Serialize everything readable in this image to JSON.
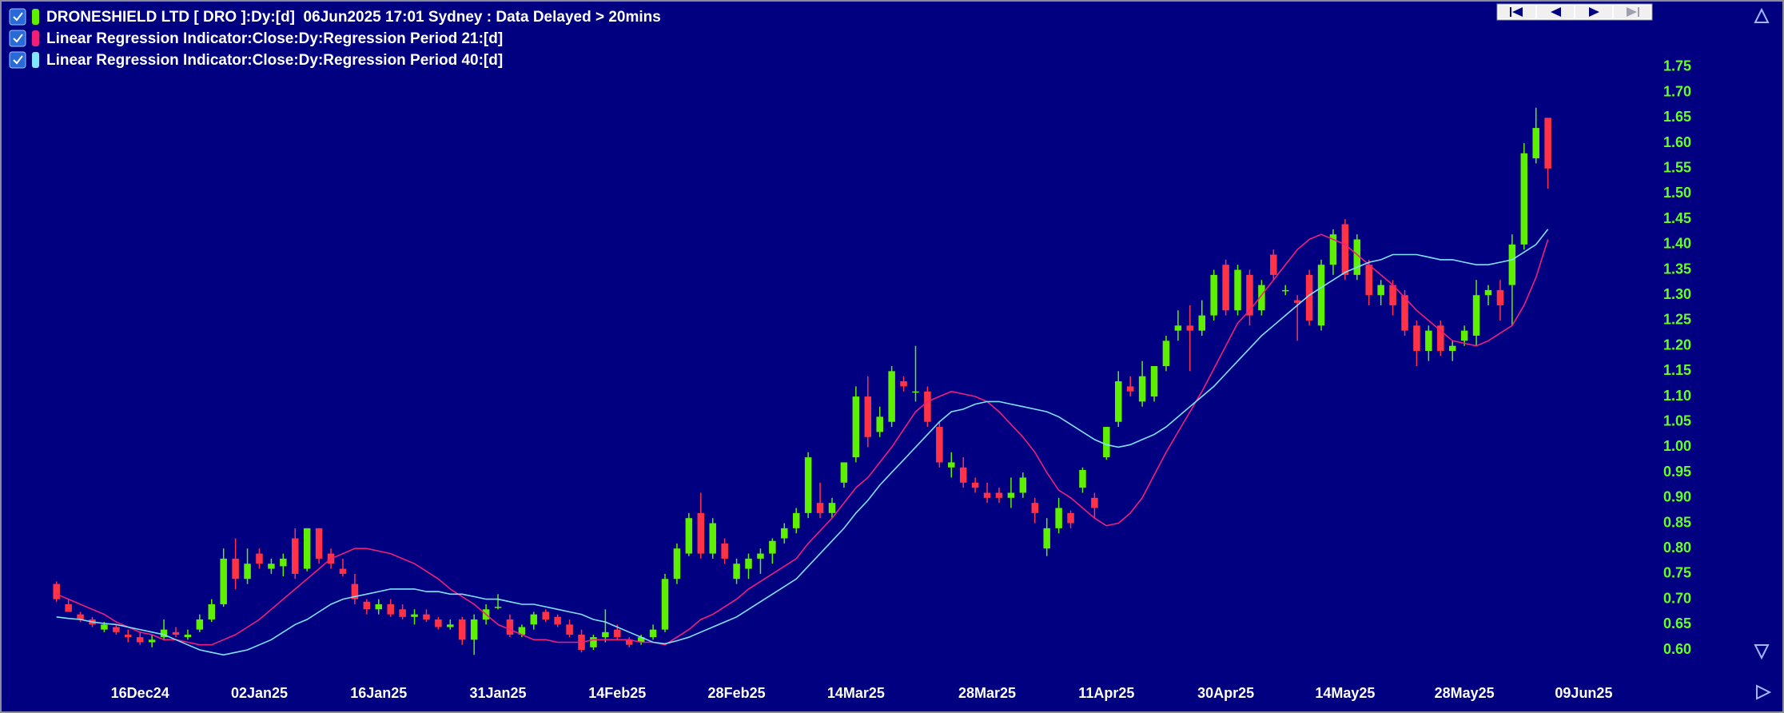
{
  "chart_data": {
    "type": "candlestick",
    "candles": {
      "name": "DRONESHIELD LTD [ DRO ]:Dy:[d]  06Jun2025 17:01 Sydney : Data Delayed > 20mins",
      "up_color": "#5ef000",
      "down_color": "#ff3345",
      "ohlc": [
        [
          0.73,
          0.735,
          0.695,
          0.7
        ],
        [
          0.69,
          0.7,
          0.675,
          0.675
        ],
        [
          0.67,
          0.675,
          0.655,
          0.66
        ],
        [
          0.66,
          0.665,
          0.645,
          0.65
        ],
        [
          0.64,
          0.655,
          0.635,
          0.65
        ],
        [
          0.645,
          0.65,
          0.63,
          0.635
        ],
        [
          0.63,
          0.64,
          0.615,
          0.625
        ],
        [
          0.625,
          0.635,
          0.61,
          0.615
        ],
        [
          0.615,
          0.63,
          0.605,
          0.62
        ],
        [
          0.625,
          0.66,
          0.62,
          0.64
        ],
        [
          0.635,
          0.645,
          0.625,
          0.63
        ],
        [
          0.625,
          0.64,
          0.62,
          0.63
        ],
        [
          0.64,
          0.67,
          0.635,
          0.66
        ],
        [
          0.66,
          0.7,
          0.655,
          0.69
        ],
        [
          0.69,
          0.8,
          0.685,
          0.78
        ],
        [
          0.78,
          0.82,
          0.72,
          0.74
        ],
        [
          0.74,
          0.8,
          0.73,
          0.77
        ],
        [
          0.79,
          0.8,
          0.76,
          0.77
        ],
        [
          0.76,
          0.78,
          0.75,
          0.77
        ],
        [
          0.765,
          0.79,
          0.745,
          0.78
        ],
        [
          0.82,
          0.84,
          0.74,
          0.75
        ],
        [
          0.76,
          0.84,
          0.755,
          0.84
        ],
        [
          0.84,
          0.84,
          0.77,
          0.78
        ],
        [
          0.79,
          0.8,
          0.76,
          0.77
        ],
        [
          0.76,
          0.78,
          0.745,
          0.75
        ],
        [
          0.73,
          0.75,
          0.69,
          0.7
        ],
        [
          0.695,
          0.7,
          0.67,
          0.68
        ],
        [
          0.68,
          0.7,
          0.67,
          0.69
        ],
        [
          0.69,
          0.7,
          0.665,
          0.67
        ],
        [
          0.68,
          0.69,
          0.66,
          0.665
        ],
        [
          0.665,
          0.68,
          0.65,
          0.67
        ],
        [
          0.67,
          0.68,
          0.655,
          0.66
        ],
        [
          0.66,
          0.665,
          0.64,
          0.645
        ],
        [
          0.645,
          0.66,
          0.64,
          0.65
        ],
        [
          0.66,
          0.665,
          0.61,
          0.62
        ],
        [
          0.62,
          0.67,
          0.59,
          0.66
        ],
        [
          0.66,
          0.69,
          0.65,
          0.68
        ],
        [
          0.685,
          0.71,
          0.68,
          0.685
        ],
        [
          0.66,
          0.67,
          0.625,
          0.63
        ],
        [
          0.63,
          0.65,
          0.625,
          0.645
        ],
        [
          0.65,
          0.675,
          0.64,
          0.67
        ],
        [
          0.675,
          0.68,
          0.655,
          0.66
        ],
        [
          0.665,
          0.67,
          0.645,
          0.65
        ],
        [
          0.65,
          0.66,
          0.625,
          0.63
        ],
        [
          0.63,
          0.64,
          0.595,
          0.6
        ],
        [
          0.605,
          0.63,
          0.6,
          0.625
        ],
        [
          0.625,
          0.68,
          0.615,
          0.635
        ],
        [
          0.64,
          0.65,
          0.62,
          0.625
        ],
        [
          0.62,
          0.625,
          0.605,
          0.61
        ],
        [
          0.615,
          0.63,
          0.61,
          0.625
        ],
        [
          0.625,
          0.65,
          0.62,
          0.64
        ],
        [
          0.64,
          0.75,
          0.635,
          0.74
        ],
        [
          0.74,
          0.81,
          0.73,
          0.8
        ],
        [
          0.79,
          0.87,
          0.785,
          0.86
        ],
        [
          0.87,
          0.91,
          0.78,
          0.79
        ],
        [
          0.79,
          0.86,
          0.78,
          0.85
        ],
        [
          0.81,
          0.82,
          0.77,
          0.78
        ],
        [
          0.74,
          0.78,
          0.73,
          0.77
        ],
        [
          0.76,
          0.79,
          0.74,
          0.78
        ],
        [
          0.78,
          0.8,
          0.75,
          0.79
        ],
        [
          0.79,
          0.82,
          0.77,
          0.815
        ],
        [
          0.82,
          0.85,
          0.81,
          0.84
        ],
        [
          0.84,
          0.88,
          0.83,
          0.87
        ],
        [
          0.87,
          0.99,
          0.86,
          0.98
        ],
        [
          0.89,
          0.93,
          0.86,
          0.87
        ],
        [
          0.87,
          0.9,
          0.86,
          0.89
        ],
        [
          0.93,
          0.97,
          0.92,
          0.97
        ],
        [
          0.98,
          1.12,
          0.97,
          1.1
        ],
        [
          1.1,
          1.14,
          1.0,
          1.02
        ],
        [
          1.03,
          1.08,
          1.02,
          1.06
        ],
        [
          1.05,
          1.16,
          1.04,
          1.15
        ],
        [
          1.13,
          1.14,
          1.11,
          1.12
        ],
        [
          1.11,
          1.2,
          1.09,
          1.11
        ],
        [
          1.11,
          1.12,
          1.04,
          1.05
        ],
        [
          1.04,
          1.05,
          0.96,
          0.97
        ],
        [
          0.96,
          0.99,
          0.94,
          0.97
        ],
        [
          0.96,
          0.98,
          0.92,
          0.93
        ],
        [
          0.93,
          0.94,
          0.91,
          0.92
        ],
        [
          0.91,
          0.93,
          0.89,
          0.9
        ],
        [
          0.91,
          0.92,
          0.89,
          0.9
        ],
        [
          0.9,
          0.94,
          0.88,
          0.91
        ],
        [
          0.91,
          0.95,
          0.9,
          0.94
        ],
        [
          0.89,
          0.9,
          0.85,
          0.87
        ],
        [
          0.8,
          0.86,
          0.785,
          0.84
        ],
        [
          0.84,
          0.9,
          0.83,
          0.88
        ],
        [
          0.87,
          0.875,
          0.84,
          0.85
        ],
        [
          0.92,
          0.96,
          0.91,
          0.955
        ],
        [
          0.9,
          0.91,
          0.86,
          0.88
        ],
        [
          0.98,
          1.04,
          0.975,
          1.04
        ],
        [
          1.05,
          1.15,
          1.04,
          1.13
        ],
        [
          1.12,
          1.14,
          1.1,
          1.11
        ],
        [
          1.09,
          1.17,
          1.08,
          1.14
        ],
        [
          1.1,
          1.16,
          1.09,
          1.16
        ],
        [
          1.16,
          1.22,
          1.15,
          1.21
        ],
        [
          1.23,
          1.27,
          1.21,
          1.24
        ],
        [
          1.24,
          1.28,
          1.15,
          1.23
        ],
        [
          1.23,
          1.29,
          1.22,
          1.26
        ],
        [
          1.26,
          1.35,
          1.25,
          1.34
        ],
        [
          1.36,
          1.37,
          1.26,
          1.27
        ],
        [
          1.27,
          1.36,
          1.26,
          1.35
        ],
        [
          1.34,
          1.35,
          1.24,
          1.26
        ],
        [
          1.27,
          1.33,
          1.26,
          1.32
        ],
        [
          1.38,
          1.39,
          1.33,
          1.34
        ],
        [
          1.31,
          1.32,
          1.3,
          1.31
        ],
        [
          1.29,
          1.3,
          1.21,
          1.285
        ],
        [
          1.34,
          1.35,
          1.24,
          1.25
        ],
        [
          1.24,
          1.37,
          1.23,
          1.36
        ],
        [
          1.36,
          1.43,
          1.34,
          1.42
        ],
        [
          1.44,
          1.45,
          1.33,
          1.34
        ],
        [
          1.34,
          1.42,
          1.33,
          1.41
        ],
        [
          1.36,
          1.37,
          1.28,
          1.3
        ],
        [
          1.3,
          1.33,
          1.28,
          1.32
        ],
        [
          1.32,
          1.33,
          1.26,
          1.28
        ],
        [
          1.3,
          1.31,
          1.22,
          1.23
        ],
        [
          1.24,
          1.25,
          1.16,
          1.19
        ],
        [
          1.19,
          1.24,
          1.17,
          1.23
        ],
        [
          1.24,
          1.25,
          1.18,
          1.19
        ],
        [
          1.19,
          1.21,
          1.17,
          1.2
        ],
        [
          1.21,
          1.24,
          1.2,
          1.23
        ],
        [
          1.22,
          1.33,
          1.2,
          1.3
        ],
        [
          1.3,
          1.32,
          1.28,
          1.31
        ],
        [
          1.31,
          1.33,
          1.25,
          1.28
        ],
        [
          1.32,
          1.42,
          1.24,
          1.4
        ],
        [
          1.4,
          1.6,
          1.39,
          1.58
        ],
        [
          1.57,
          1.67,
          1.56,
          1.63
        ],
        [
          1.65,
          1.65,
          1.51,
          1.55
        ]
      ]
    },
    "series": [
      {
        "name": "Linear Regression Indicator:Close:Dy:Regression Period 21:[d]",
        "color": "#f0207a",
        "values": [
          0.71,
          0.7,
          0.69,
          0.68,
          0.67,
          0.655,
          0.645,
          0.635,
          0.63,
          0.62,
          0.62,
          0.615,
          0.61,
          0.61,
          0.62,
          0.63,
          0.645,
          0.66,
          0.68,
          0.7,
          0.72,
          0.74,
          0.76,
          0.78,
          0.79,
          0.8,
          0.8,
          0.795,
          0.79,
          0.78,
          0.77,
          0.755,
          0.74,
          0.72,
          0.705,
          0.69,
          0.67,
          0.65,
          0.64,
          0.63,
          0.62,
          0.62,
          0.615,
          0.615,
          0.615,
          0.62,
          0.62,
          0.62,
          0.62,
          0.615,
          0.615,
          0.61,
          0.625,
          0.64,
          0.66,
          0.67,
          0.685,
          0.7,
          0.72,
          0.735,
          0.75,
          0.765,
          0.78,
          0.81,
          0.835,
          0.86,
          0.89,
          0.92,
          0.94,
          0.97,
          1.0,
          1.035,
          1.07,
          1.09,
          1.1,
          1.11,
          1.105,
          1.1,
          1.09,
          1.07,
          1.045,
          1.02,
          0.99,
          0.95,
          0.915,
          0.9,
          0.88,
          0.86,
          0.845,
          0.85,
          0.87,
          0.9,
          0.945,
          0.99,
          1.03,
          1.07,
          1.11,
          1.155,
          1.2,
          1.245,
          1.27,
          1.3,
          1.33,
          1.36,
          1.39,
          1.41,
          1.42,
          1.41,
          1.4,
          1.38,
          1.36,
          1.34,
          1.32,
          1.295,
          1.27,
          1.25,
          1.23,
          1.21,
          1.205,
          1.2,
          1.21,
          1.225,
          1.24,
          1.28,
          1.335,
          1.41
        ]
      },
      {
        "name": "Linear Regression Indicator:Close:Dy:Regression Period 40:[d]",
        "color": "#80e4ff",
        "values": [
          0.665,
          0.662,
          0.66,
          0.655,
          0.652,
          0.65,
          0.645,
          0.64,
          0.635,
          0.63,
          0.62,
          0.61,
          0.6,
          0.595,
          0.59,
          0.595,
          0.6,
          0.61,
          0.62,
          0.635,
          0.65,
          0.66,
          0.675,
          0.69,
          0.7,
          0.705,
          0.71,
          0.715,
          0.72,
          0.72,
          0.72,
          0.715,
          0.715,
          0.71,
          0.71,
          0.705,
          0.7,
          0.7,
          0.695,
          0.69,
          0.69,
          0.685,
          0.68,
          0.675,
          0.67,
          0.66,
          0.655,
          0.645,
          0.635,
          0.625,
          0.615,
          0.612,
          0.618,
          0.625,
          0.635,
          0.645,
          0.655,
          0.665,
          0.68,
          0.695,
          0.71,
          0.725,
          0.74,
          0.765,
          0.79,
          0.815,
          0.84,
          0.87,
          0.895,
          0.925,
          0.95,
          0.975,
          1.0,
          1.025,
          1.05,
          1.07,
          1.075,
          1.085,
          1.09,
          1.09,
          1.085,
          1.08,
          1.075,
          1.07,
          1.06,
          1.045,
          1.03,
          1.015,
          1.005,
          1.0,
          1.005,
          1.015,
          1.025,
          1.04,
          1.06,
          1.08,
          1.1,
          1.12,
          1.145,
          1.17,
          1.195,
          1.22,
          1.24,
          1.26,
          1.28,
          1.3,
          1.315,
          1.33,
          1.345,
          1.355,
          1.365,
          1.37,
          1.38,
          1.38,
          1.38,
          1.375,
          1.37,
          1.37,
          1.365,
          1.36,
          1.36,
          1.365,
          1.37,
          1.385,
          1.4,
          1.43
        ]
      }
    ],
    "xlim": [
      -4,
      134
    ],
    "xticks": [
      {
        "value": 7,
        "label": "16Dec24"
      },
      {
        "value": 17,
        "label": "02Jan25"
      },
      {
        "value": 27,
        "label": "16Jan25"
      },
      {
        "value": 37,
        "label": "31Jan25"
      },
      {
        "value": 47,
        "label": "14Feb25"
      },
      {
        "value": 57,
        "label": "28Feb25"
      },
      {
        "value": 67,
        "label": "14Mar25"
      },
      {
        "value": 78,
        "label": "28Mar25"
      },
      {
        "value": 88,
        "label": "11Apr25"
      },
      {
        "value": 98,
        "label": "30Apr25"
      },
      {
        "value": 108,
        "label": "14May25"
      },
      {
        "value": 118,
        "label": "28May25"
      },
      {
        "value": 128,
        "label": "09Jun25"
      }
    ],
    "ylim": [
      0.55,
      1.85
    ],
    "yticks": [
      {
        "value": 0.6,
        "label": "0.60"
      },
      0.65,
      {
        "value": 0.7,
        "label": "0.70"
      },
      0.75,
      {
        "value": 0.8,
        "label": "0.80"
      },
      0.85,
      {
        "value": 0.9,
        "label": "0.90"
      },
      0.95,
      {
        "value": 1.0,
        "label": "1.00"
      },
      1.05,
      {
        "value": 1.1,
        "label": "1.10"
      },
      1.15,
      {
        "value": 1.2,
        "label": "1.20"
      },
      1.25,
      {
        "value": 1.3,
        "label": "1.30"
      },
      1.35,
      {
        "value": 1.4,
        "label": "1.40"
      },
      1.45,
      {
        "value": 1.5,
        "label": "1.50"
      },
      1.55,
      {
        "value": 1.6,
        "label": "1.60"
      },
      1.65,
      {
        "value": 1.7,
        "label": "1.70"
      },
      1.75
    ],
    "grid": false
  }
}
